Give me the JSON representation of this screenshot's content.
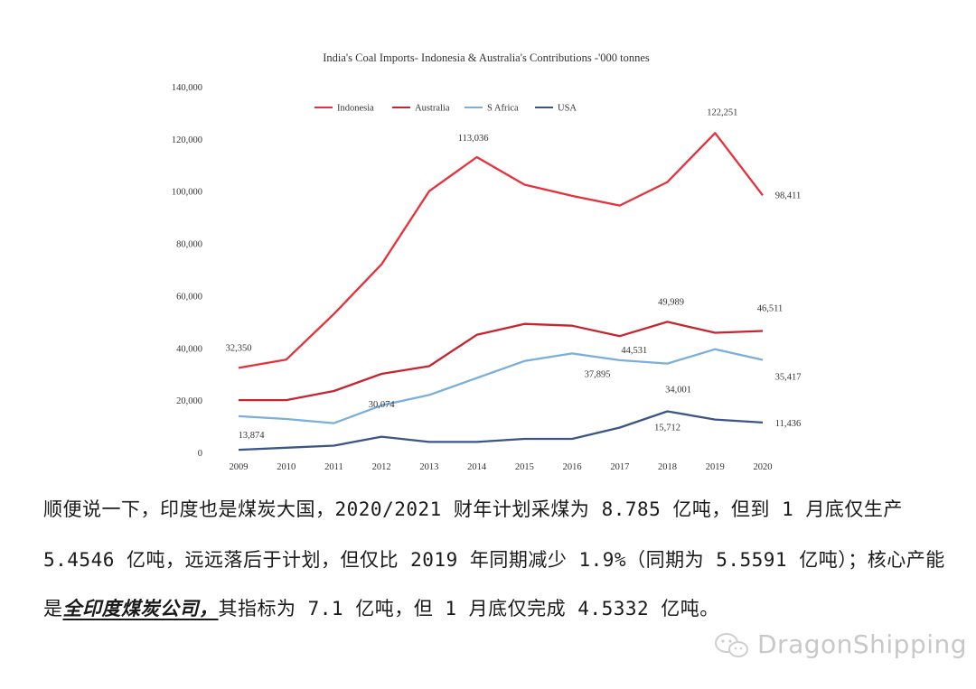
{
  "chart_data": {
    "type": "line",
    "title": "India's Coal Imports- Indonesia & Australia's Contributions -'000 tonnes",
    "xlabel": "",
    "ylabel": "",
    "categories": [
      "2009",
      "2010",
      "2011",
      "2012",
      "2013",
      "2014",
      "2015",
      "2016",
      "2017",
      "2018",
      "2019",
      "2020"
    ],
    "ylim": [
      0,
      140000
    ],
    "yticks": [
      0,
      20000,
      40000,
      60000,
      80000,
      100000,
      120000,
      140000
    ],
    "ytick_labels": [
      "0",
      "20,000",
      "40,000",
      "60,000",
      "80,000",
      "100,000",
      "120,000",
      "140,000"
    ],
    "grid": false,
    "legend_placement": "top",
    "series": [
      {
        "name": "Indonesia",
        "color": "#e8303a",
        "values": [
          32350,
          35500,
          53000,
          72000,
          100000,
          113036,
          102500,
          98200,
          94500,
          103500,
          122251,
          98411
        ]
      },
      {
        "name": "Australia",
        "color": "#c8242e",
        "values": [
          20000,
          20000,
          23500,
          30074,
          33000,
          45000,
          49200,
          48500,
          44531,
          49989,
          45800,
          46511
        ]
      },
      {
        "name": "S Africa",
        "color": "#7aaedc",
        "values": [
          13874,
          12800,
          11200,
          18000,
          22000,
          28500,
          35000,
          37895,
          35300,
          34001,
          39500,
          35417
        ]
      },
      {
        "name": "USA",
        "color": "#3b5586",
        "values": [
          1000,
          1800,
          2600,
          6000,
          4000,
          4000,
          5200,
          5200,
          9500,
          15712,
          12600,
          11436
        ]
      }
    ],
    "annotations": [
      {
        "text": "32,350",
        "series": 0,
        "index": 0
      },
      {
        "text": "113,036",
        "series": 0,
        "index": 5
      },
      {
        "text": "122,251",
        "series": 0,
        "index": 10
      },
      {
        "text": "98,411",
        "series": 0,
        "index": 11
      },
      {
        "text": "49,989",
        "series": 1,
        "index": 9
      },
      {
        "text": "46,511",
        "series": 1,
        "index": 11
      },
      {
        "text": "44,531",
        "series": 1,
        "index": 8
      },
      {
        "text": "30,074",
        "series": 1,
        "index": 3
      },
      {
        "text": "37,895",
        "series": 2,
        "index": 7
      },
      {
        "text": "34,001",
        "series": 2,
        "index": 9
      },
      {
        "text": "35,417",
        "series": 2,
        "index": 11
      },
      {
        "text": "13,874",
        "series": 2,
        "index": 0
      },
      {
        "text": "15,712",
        "series": 3,
        "index": 9
      },
      {
        "text": "11,436",
        "series": 3,
        "index": 11
      }
    ]
  },
  "article": {
    "line1": "顺便说一下，印度也是煤炭大国，2020/2021 财年计划采煤为 8.785 亿吨，但到 1 月底仅生产",
    "line2": "5.4546 亿吨，远远落后于计划，但仅比 2019 年同期减少 1.9%（同期为 5.5591 亿吨）；核心产能",
    "line3_prefix": "是",
    "line3_emphasis": "全印度煤炭公司，",
    "line3_suffix": "其指标为 7.1 亿吨，但 1 月底仅完成 4.5332 亿吨。"
  },
  "watermark": {
    "text": "DragonShipping",
    "icon": "wechat-icon",
    "color": "#c8c8c8"
  }
}
